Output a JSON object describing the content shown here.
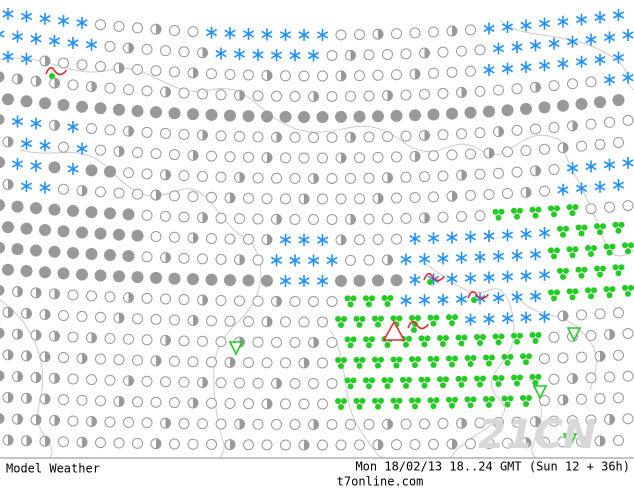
{
  "header": {
    "product": "Model Weather",
    "valid_time": "Mon 18/02/13 18..24 GMT (Sun 12 + 36h)",
    "site": "t7online.com"
  },
  "watermark": "21CN"
}
